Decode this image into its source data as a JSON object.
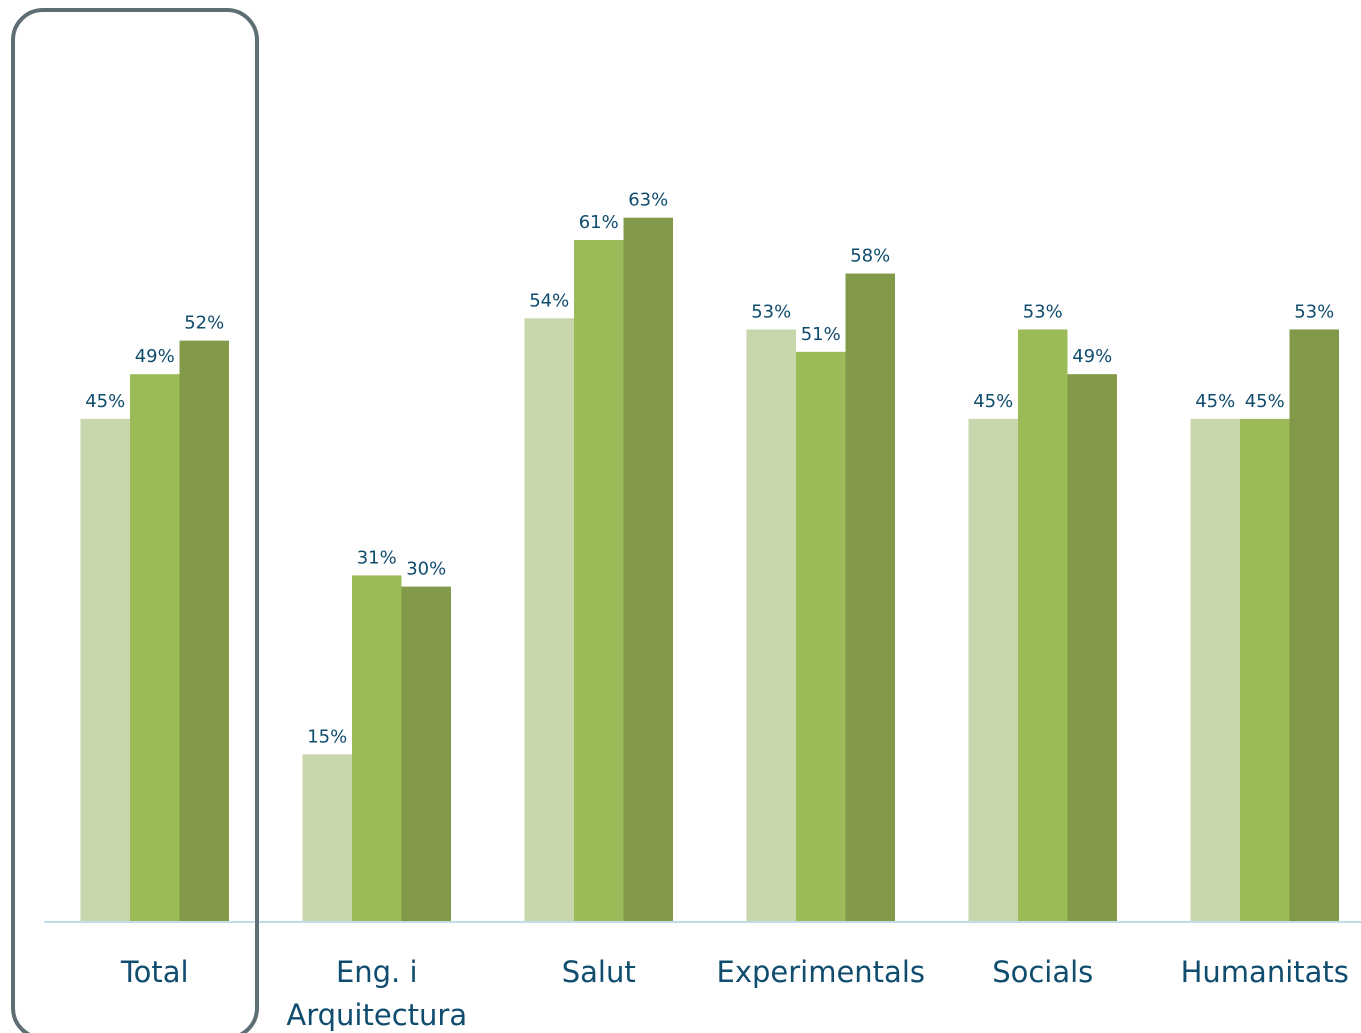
{
  "chart_data": {
    "type": "bar",
    "title": "",
    "xlabel": "",
    "ylabel": "",
    "categories": [
      [
        "Total"
      ],
      [
        "Eng. i",
        "Arquitectura"
      ],
      [
        "Salut"
      ],
      [
        "Experimentals"
      ],
      [
        "Socials"
      ],
      [
        "Humanitats"
      ]
    ],
    "series": [
      {
        "values": [
          45,
          15,
          54,
          53,
          45,
          45
        ]
      },
      {
        "values": [
          49,
          31,
          61,
          51,
          53,
          45
        ]
      },
      {
        "values": [
          52,
          30,
          63,
          58,
          49,
          53
        ]
      }
    ],
    "data_labels": [
      [
        "45%",
        "15%",
        "54%",
        "53%",
        "45%",
        "45%"
      ],
      [
        "49%",
        "31%",
        "61%",
        "51%",
        "53%",
        "45%"
      ],
      [
        "52%",
        "30%",
        "63%",
        "58%",
        "49%",
        "53%"
      ]
    ],
    "ylim": [
      0,
      80
    ],
    "grid": false,
    "legend": false,
    "highlighted_category": "Total"
  },
  "colors": {
    "series": [
      "#c7d7ab",
      "#9bbb59",
      "#82994a"
    ],
    "label_text": "#0f4c6e",
    "axis_line": "#c3dde8",
    "highlight_border": "#5e6e75",
    "background": "#ffffff"
  }
}
